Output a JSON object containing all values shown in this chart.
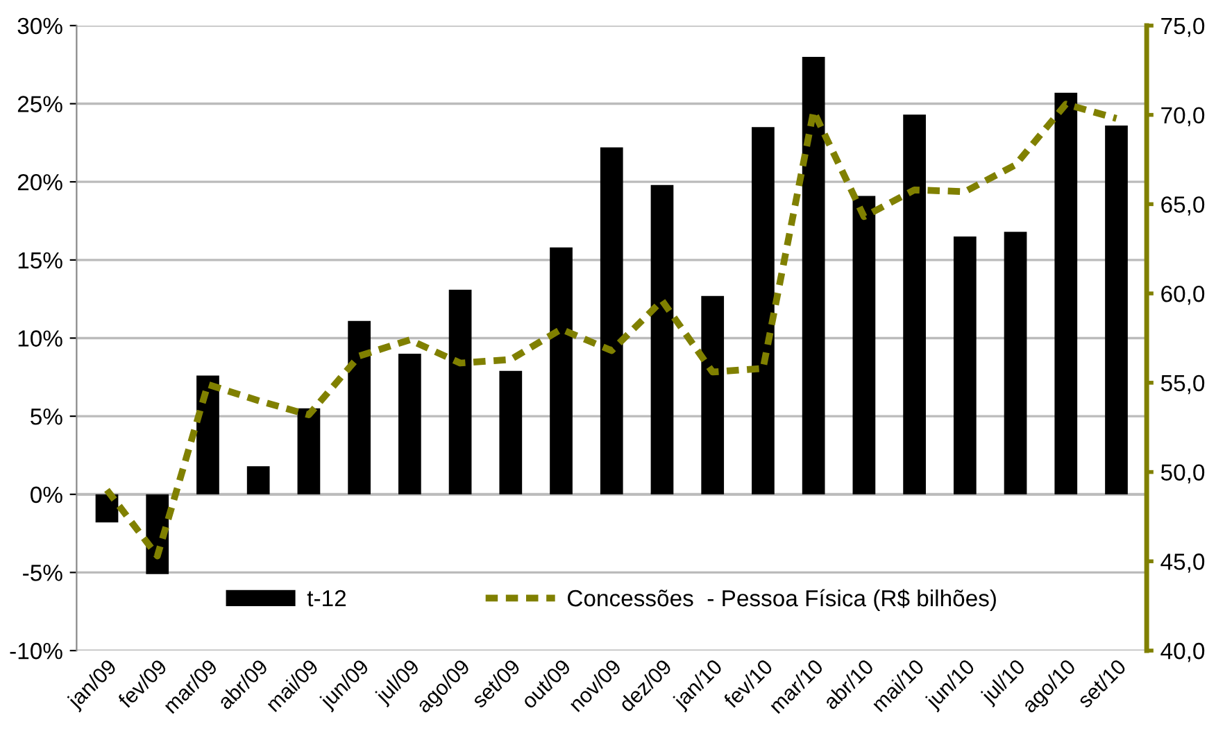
{
  "chart_data": {
    "type": "bar",
    "categories": [
      "jan/09",
      "fev/09",
      "mar/09",
      "abr/09",
      "mai/09",
      "jun/09",
      "jul/09",
      "ago/09",
      "set/09",
      "out/09",
      "nov/09",
      "dez/09",
      "jan/10",
      "fev/10",
      "mar/10",
      "abr/10",
      "mai/10",
      "jun/10",
      "jul/10",
      "ago/10",
      "set/10"
    ],
    "series": [
      {
        "name": "t-12",
        "color": "#000000",
        "values": [
          -1.8,
          -5.1,
          7.6,
          1.8,
          5.5,
          11.1,
          9.0,
          13.1,
          7.9,
          15.8,
          22.2,
          19.8,
          12.7,
          23.5,
          28.0,
          19.1,
          24.3,
          16.5,
          16.8,
          25.7,
          23.6
        ]
      },
      {
        "name": "Concessões  - Pessoa Física (R$ bilhões)",
        "type": "line",
        "axis": "y2",
        "color": "#808000",
        "line_style": "dashed",
        "values": [
          49.0,
          45.3,
          54.9,
          54.0,
          53.2,
          56.5,
          57.4,
          56.1,
          56.3,
          58.0,
          56.8,
          59.6,
          55.6,
          55.8,
          70.2,
          64.3,
          65.8,
          65.7,
          67.2,
          70.6,
          69.8
        ]
      }
    ],
    "ylim": [
      -10,
      30
    ],
    "yticks": [
      {
        "value": -10,
        "label": "-10%"
      },
      {
        "value": -5,
        "label": "-5%"
      },
      {
        "value": 0,
        "label": "0%"
      },
      {
        "value": 5,
        "label": "5%"
      },
      {
        "value": 10,
        "label": "10%"
      },
      {
        "value": 15,
        "label": "15%"
      },
      {
        "value": 20,
        "label": "20%"
      },
      {
        "value": 25,
        "label": "25%"
      },
      {
        "value": 30,
        "label": "30%"
      }
    ],
    "y2lim": [
      40,
      75
    ],
    "y2ticks": [
      {
        "value": 40,
        "label": "40,0"
      },
      {
        "value": 45,
        "label": "45,0"
      },
      {
        "value": 50,
        "label": "50,0"
      },
      {
        "value": 55,
        "label": "55,0"
      },
      {
        "value": 60,
        "label": "60,0"
      },
      {
        "value": 65,
        "label": "65,0"
      },
      {
        "value": 70,
        "label": "70,0"
      },
      {
        "value": 75,
        "label": "75,0"
      }
    ],
    "grid": "y",
    "legend": "bottom"
  }
}
